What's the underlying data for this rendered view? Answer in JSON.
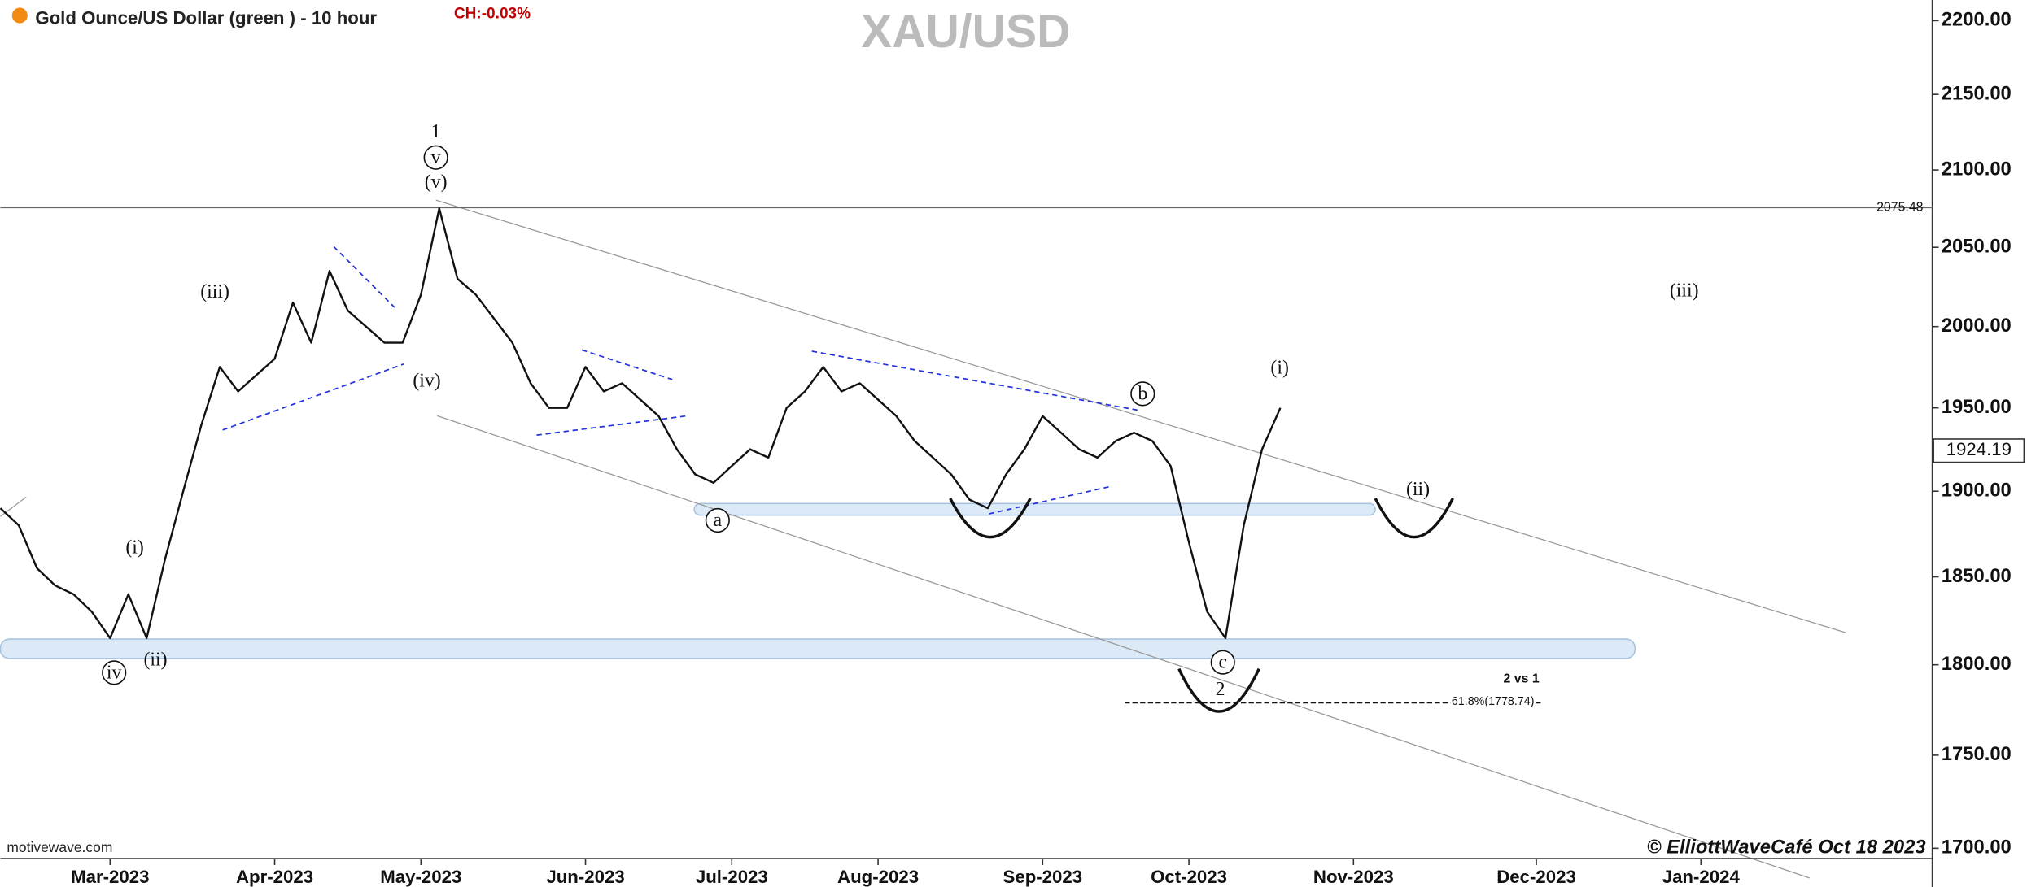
{
  "header": {
    "instrument": "Gold Ounce/US Dollar (green ) - 10 hour",
    "change": "CH:-0.03%"
  },
  "footer": {
    "source": "motivewave.com",
    "credit": "© ElliottWaveCafé Oct 18 2023"
  },
  "chart_data": {
    "type": "line",
    "title": "XAU/USD",
    "log_scale": true,
    "grid": false,
    "color": "#111111",
    "categories": [
      null,
      null,
      null,
      null,
      null,
      null,
      "Mar-2023",
      null,
      null,
      null,
      null,
      null,
      null,
      null,
      null,
      "Apr-2023",
      null,
      null,
      null,
      null,
      null,
      null,
      null,
      "May-2023",
      null,
      null,
      null,
      null,
      null,
      null,
      null,
      null,
      "Jun-2023",
      null,
      null,
      null,
      null,
      null,
      null,
      null,
      "Jul-2023",
      null,
      null,
      null,
      null,
      null,
      null,
      null,
      "Aug-2023",
      null,
      null,
      null,
      null,
      null,
      null,
      null,
      null,
      "Sep-2023",
      null,
      null,
      null,
      null,
      null,
      null,
      null,
      "Oct-2023",
      null,
      null,
      null,
      null,
      null,
      null,
      null,
      null,
      "Nov-2023",
      null,
      null,
      null,
      null,
      null,
      null,
      null,
      null,
      null,
      "Dec-2023",
      null,
      null,
      null,
      null,
      null,
      null,
      null,
      null,
      "Jan-2024",
      null,
      null,
      null,
      null,
      null,
      null,
      null,
      null,
      null,
      null,
      null,
      null
    ],
    "values": [
      1890,
      1880,
      1855,
      1845,
      1840,
      1830,
      1815,
      1840,
      1815,
      1860,
      1900,
      1940,
      1975,
      1960,
      1970,
      1980,
      2015,
      1990,
      2035,
      2010,
      2000,
      1990,
      1990,
      2020,
      2075,
      2030,
      2020,
      2005,
      1990,
      1965,
      1950,
      1950,
      1975,
      1960,
      1965,
      1955,
      1945,
      1925,
      1910,
      1905,
      1915,
      1925,
      1920,
      1950,
      1960,
      1975,
      1960,
      1965,
      1955,
      1945,
      1930,
      1920,
      1910,
      1895,
      1890,
      1910,
      1925,
      1945,
      1935,
      1925,
      1920,
      1930,
      1935,
      1930,
      1915,
      1870,
      1830,
      1815,
      1880,
      1925,
      1950,
      null,
      null,
      null,
      null,
      null,
      null,
      null,
      null,
      null,
      null,
      null,
      null,
      null,
      null,
      null,
      null,
      null,
      null,
      null,
      null,
      null,
      null,
      null,
      null,
      null,
      null,
      null,
      null,
      null,
      null,
      null,
      null,
      null,
      null,
      null
    ],
    "ylim": [
      1700,
      2200
    ],
    "yticks": [
      {
        "value": 1700,
        "label": "1700.00"
      },
      {
        "value": 1750,
        "label": "1750.00"
      },
      {
        "value": 1800,
        "label": "1800.00"
      },
      {
        "value": 1850,
        "label": "1850.00"
      },
      {
        "value": 1900,
        "label": "1900.00"
      },
      {
        "value": 1950,
        "label": "1950.00"
      },
      {
        "value": 2000,
        "label": "2000.00"
      },
      {
        "value": 2050,
        "label": "2050.00"
      },
      {
        "value": 2100,
        "label": "2100.00"
      },
      {
        "value": 2150,
        "label": "2150.00"
      },
      {
        "value": 2200,
        "label": "2200.00"
      }
    ],
    "high_line": 2075.48,
    "last_price": 1924.19,
    "fib_level": {
      "value": 1778.74,
      "label": "61.8%(1778.74)"
    },
    "fib_title": "2 vs 1",
    "annotations": [
      "1",
      "v",
      "(v)",
      "(iii)",
      "(iv)",
      "(i)",
      "(ii)",
      "iv",
      "a",
      "b",
      "c",
      "2",
      "(i)",
      "(ii)",
      "(iii)"
    ]
  }
}
